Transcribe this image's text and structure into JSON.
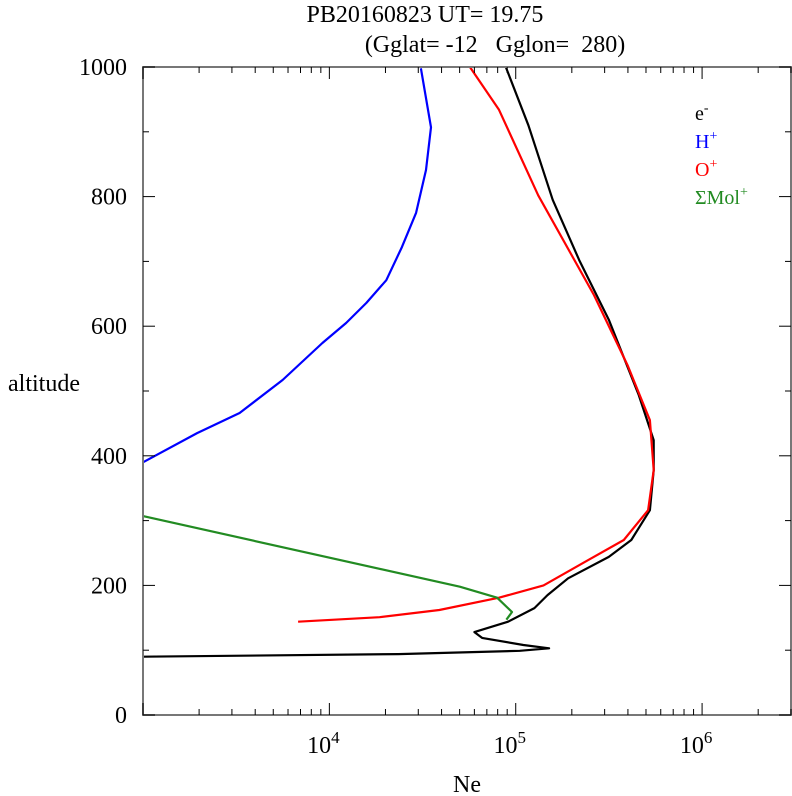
{
  "chart_data": {
    "type": "line",
    "title": "PB20160823   UT=  19.75",
    "subtitle": "(Gglat= -12   Gglon=  280)",
    "xlabel": "Ne",
    "ylabel": "altitude",
    "xscale": "log",
    "xlim": [
      1000,
      3000000
    ],
    "ylim": [
      0,
      1000
    ],
    "grid": false,
    "legend_position": "top-right",
    "x_tick_labels": [
      {
        "value": 10000,
        "base": "10",
        "exp": "4"
      },
      {
        "value": 100000,
        "base": "10",
        "exp": "5"
      },
      {
        "value": 1000000,
        "base": "10",
        "exp": "6"
      }
    ],
    "y_ticks": [
      0,
      200,
      400,
      600,
      800,
      1000
    ],
    "y_tick_labels": [
      "0",
      "200",
      "400",
      "600",
      "800",
      "1000"
    ],
    "series": [
      {
        "name": "e-",
        "label_base": "e",
        "label_sup": "-",
        "color": "#000000",
        "points": [
          [
            1000,
            88500
          ],
          [
            910,
            117000
          ],
          [
            795,
            158000
          ],
          [
            702,
            219000
          ],
          [
            610,
            316000
          ],
          [
            494,
            457000
          ],
          [
            424,
            550000
          ],
          [
            378,
            550000
          ],
          [
            316,
            525000
          ],
          [
            270,
            417000
          ],
          [
            244,
            316000
          ],
          [
            211,
            191000
          ],
          [
            185,
            148000
          ],
          [
            165,
            126000
          ],
          [
            144,
            91000
          ],
          [
            128,
            60000
          ],
          [
            119,
            66000
          ],
          [
            108,
            110000
          ],
          [
            103,
            151000
          ],
          [
            99,
            105000
          ],
          [
            94,
            23400
          ],
          [
            90,
            1000
          ]
        ]
      },
      {
        "name": "H+",
        "label_base": "H",
        "label_sup": "+",
        "color": "#0000ff",
        "points": [
          [
            998,
            31000
          ],
          [
            907,
            35100
          ],
          [
            841,
            33000
          ],
          [
            775,
            29200
          ],
          [
            722,
            24500
          ],
          [
            671,
            20200
          ],
          [
            636,
            15800
          ],
          [
            605,
            12300
          ],
          [
            574,
            9180
          ],
          [
            517,
            5610
          ],
          [
            466,
            3300
          ],
          [
            435,
            1950
          ],
          [
            390,
            1000
          ]
        ]
      },
      {
        "name": "O+",
        "label_base": "O",
        "label_sup": "+",
        "color": "#ff0000",
        "points": [
          [
            1000,
            56800
          ],
          [
            934,
            81300
          ],
          [
            802,
            132000
          ],
          [
            648,
            263000
          ],
          [
            540,
            398000
          ],
          [
            455,
            525000
          ],
          [
            378,
            550000
          ],
          [
            316,
            513000
          ],
          [
            270,
            380000
          ],
          [
            239,
            245000
          ],
          [
            200,
            141000
          ],
          [
            181,
            81300
          ],
          [
            162,
            38900
          ],
          [
            151,
            18600
          ],
          [
            144,
            6800
          ]
        ]
      },
      {
        "name": "ΣMol+",
        "label_base": "ΣMol",
        "label_sup": "+",
        "color": "#228b22",
        "points": [
          [
            307,
            1000
          ],
          [
            198,
            50100
          ],
          [
            181,
            79400
          ],
          [
            159,
            95500
          ],
          [
            147,
            89100
          ]
        ]
      }
    ]
  }
}
